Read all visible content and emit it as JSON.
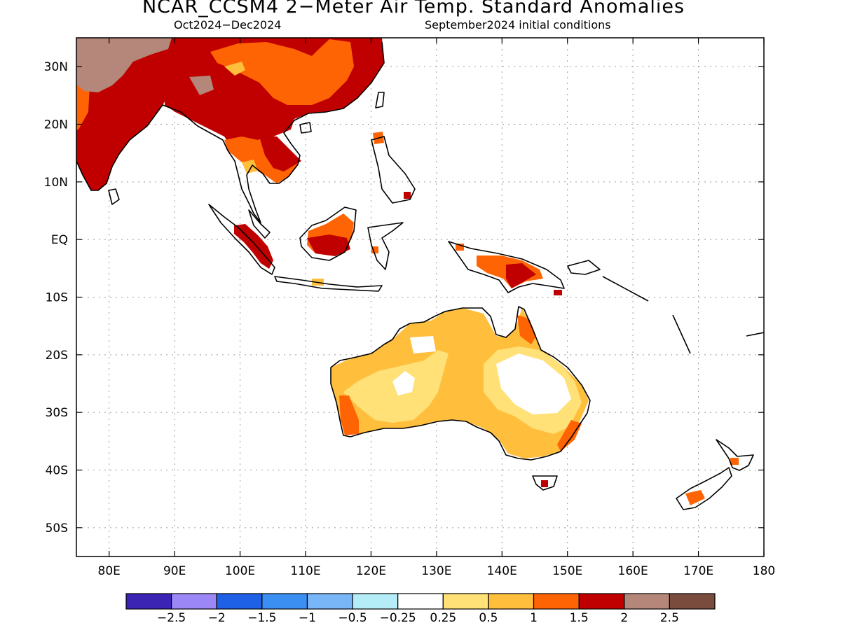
{
  "header": {
    "title": "NCAR_CCSM4 2−Meter Air Temp. Standard Anomalies",
    "period": "Oct2024−Dec2024",
    "initial_conditions": "September2024 initial conditions"
  },
  "map": {
    "lon_range": [
      75,
      180
    ],
    "lat_range": [
      -55,
      35
    ],
    "lat_ticks": [
      {
        "lat": 30,
        "label": "30N"
      },
      {
        "lat": 20,
        "label": "20N"
      },
      {
        "lat": 10,
        "label": "10N"
      },
      {
        "lat": 0,
        "label": "EQ"
      },
      {
        "lat": -10,
        "label": "10S"
      },
      {
        "lat": -20,
        "label": "20S"
      },
      {
        "lat": -30,
        "label": "30S"
      },
      {
        "lat": -40,
        "label": "40S"
      },
      {
        "lat": -50,
        "label": "50S"
      }
    ],
    "lon_ticks": [
      {
        "lon": 80,
        "label": "80E"
      },
      {
        "lon": 90,
        "label": "90E"
      },
      {
        "lon": 100,
        "label": "100E"
      },
      {
        "lon": 110,
        "label": "110E"
      },
      {
        "lon": 120,
        "label": "120E"
      },
      {
        "lon": 130,
        "label": "130E"
      },
      {
        "lon": 140,
        "label": "140E"
      },
      {
        "lon": 150,
        "label": "150E"
      },
      {
        "lon": 160,
        "label": "160E"
      },
      {
        "lon": 170,
        "label": "170E"
      },
      {
        "lon": 180,
        "label": "180"
      }
    ],
    "gridlines": true,
    "anomaly_regions": [
      {
        "region": "South Asia / India",
        "category": ">2 (mostly 1.5-2)"
      },
      {
        "region": "Tibetan Plateau",
        "category": "2-2.5"
      },
      {
        "region": "Southern China",
        "category": "1-2"
      },
      {
        "region": "Indochina",
        "category": "1-2"
      },
      {
        "region": "Sumatra",
        "category": "1.5-2"
      },
      {
        "region": "Borneo",
        "category": "1-2"
      },
      {
        "region": "New Guinea",
        "category": "1-2"
      },
      {
        "region": "Australia",
        "category": "0.25-1, locally 1-1.5"
      },
      {
        "region": "New Zealand",
        "category": "1-1.5"
      }
    ]
  },
  "colorbar": {
    "colors": [
      "#3b23b4",
      "#9b87f5",
      "#1e60e6",
      "#3c8ff2",
      "#78b6f8",
      "#b4ecf8",
      "#ffffff",
      "#ffe178",
      "#ffbe3c",
      "#ff6404",
      "#c00000",
      "#b4877a",
      "#7a4c3e"
    ],
    "labels": [
      "−2.5",
      "−2",
      "−1.5",
      "−1",
      "−0.5",
      "−0.25",
      "0.25",
      "0.5",
      "1",
      "1.5",
      "2",
      "2.5"
    ]
  }
}
